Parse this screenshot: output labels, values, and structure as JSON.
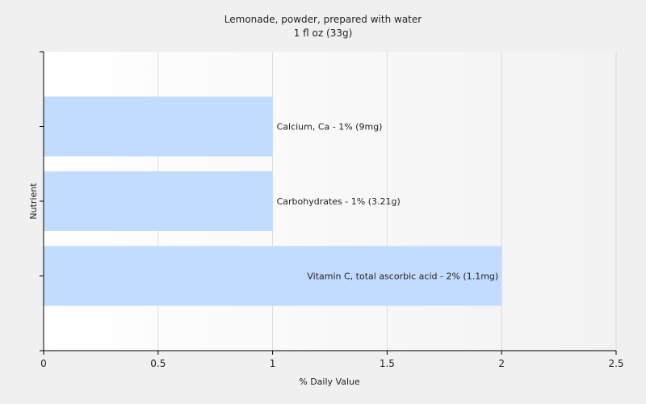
{
  "chart_data": {
    "type": "bar",
    "orientation": "horizontal",
    "title": "Lemonade, powder, prepared with water",
    "subtitle": "1 fl oz (33g)",
    "xlabel": "% Daily Value",
    "ylabel": "Nutrient",
    "xlim": [
      0,
      2.5
    ],
    "xticks": [
      "0",
      "0.5",
      "1",
      "1.5",
      "2",
      "2.5"
    ],
    "grid": true,
    "legend": "none",
    "categories": [
      "Calcium, Ca",
      "Carbohydrates",
      "Vitamin C, total ascorbic acid"
    ],
    "values": [
      1,
      1,
      2
    ],
    "bar_labels": [
      "Calcium, Ca - 1% (9mg)",
      "Carbohydrates - 1% (3.21g)",
      "Vitamin C, total ascorbic acid - 2% (1.1mg)"
    ],
    "bar_color": "#c2dcff"
  }
}
